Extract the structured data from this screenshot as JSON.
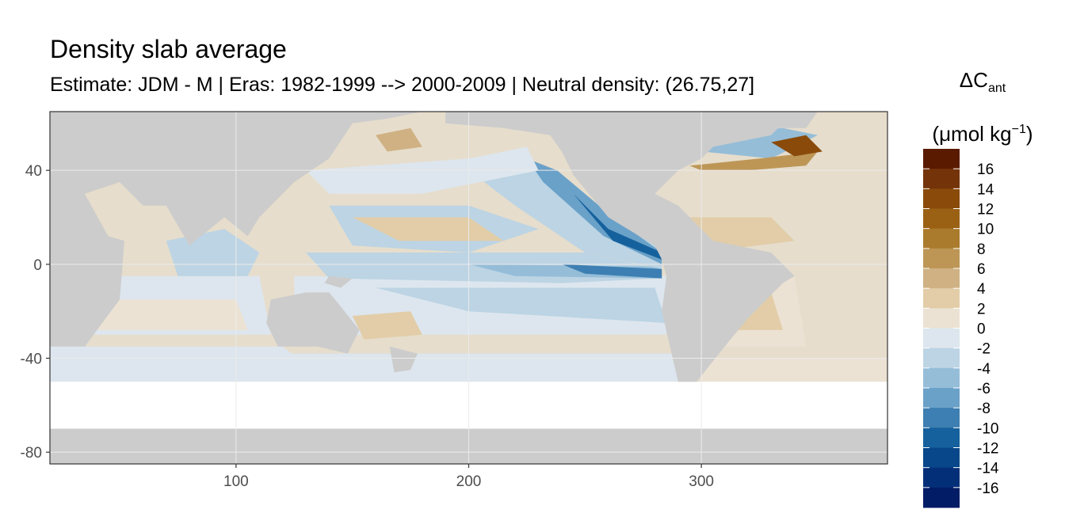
{
  "title": "Density slab average",
  "subtitle": "Estimate: JDM - M | Eras: 1982-1999 --> 2000-2009 | Neutral density: (26.75,27]",
  "legend": {
    "title_main": "ΔC",
    "title_sub": "ant",
    "unit_open": "(μmol kg",
    "unit_sup": "−1",
    "unit_close": ")",
    "labels": [
      "16",
      "14",
      "12",
      "10",
      "8",
      "6",
      "4",
      "2",
      "0",
      "-2",
      "-4",
      "-6",
      "-8",
      "-10",
      "-12",
      "-14",
      "-16"
    ],
    "colors": [
      "#5a1a00",
      "#743308",
      "#8a4b0a",
      "#9a6114",
      "#ab7b2d",
      "#bd9656",
      "#cfb183",
      "#e2cda8",
      "#ece2d3",
      "#dde6ee",
      "#bcd4e4",
      "#95bdd8",
      "#6aa1c8",
      "#3d7fb2",
      "#15619d",
      "#07478a",
      "#032f78",
      "#021c66"
    ]
  },
  "chart_data": {
    "type": "heatmap",
    "title": "Density slab average",
    "subtitle": "Estimate: JDM - M | Eras: 1982-1999 --> 2000-2009 | Neutral density: (26.75,27]",
    "xlabel": "",
    "ylabel": "",
    "xlim": [
      20,
      380
    ],
    "ylim": [
      -85,
      65
    ],
    "x_ticks": [
      100,
      200,
      300
    ],
    "y_ticks": [
      40,
      0,
      -40,
      -80
    ],
    "grid": true,
    "legend_position": "right",
    "colorbar_range": [
      -18,
      18
    ],
    "colorbar_step": 2,
    "land_color": "#cccccc",
    "nodata_color": "#ffffff"
  }
}
